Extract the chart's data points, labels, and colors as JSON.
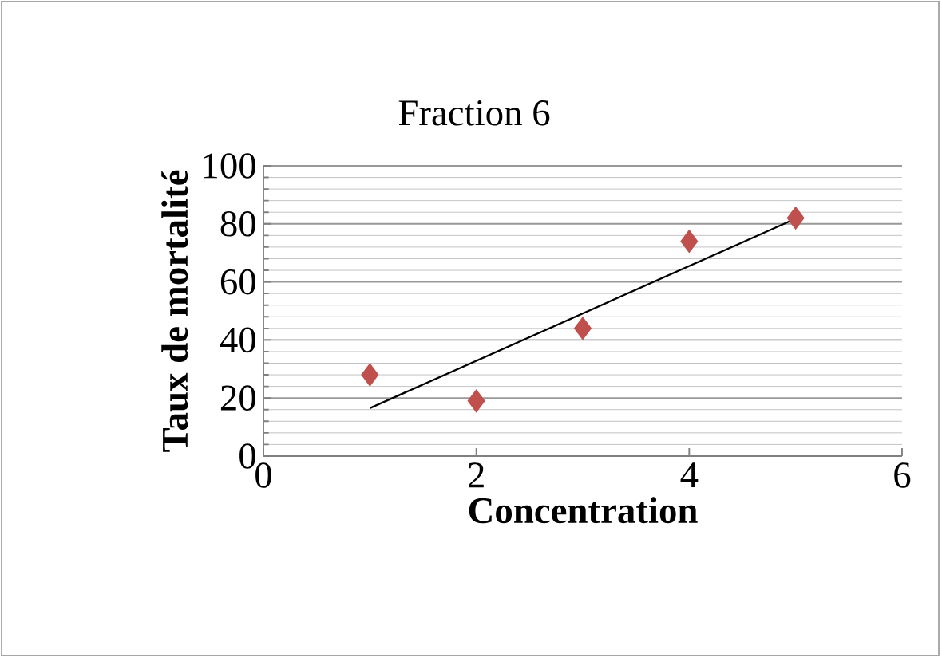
{
  "chart_data": {
    "type": "scatter",
    "title": "Fraction 6",
    "xlabel": "Concentration",
    "ylabel": "Taux de mortalité",
    "xlim": [
      0,
      6
    ],
    "ylim": [
      0,
      100
    ],
    "xticks": [
      0,
      2,
      4,
      6
    ],
    "yticks": [
      0,
      20,
      40,
      60,
      80,
      100
    ],
    "grid": "y",
    "marker": "diamond",
    "series": [
      {
        "type": "scatter",
        "color": "#c0504d",
        "x": [
          1,
          2,
          3,
          4,
          5
        ],
        "values": [
          28,
          19,
          44,
          74,
          82
        ]
      },
      {
        "type": "line",
        "color": "#000000",
        "marker": "none",
        "x": [
          1,
          5
        ],
        "values": [
          16.5,
          81.8
        ]
      }
    ]
  }
}
